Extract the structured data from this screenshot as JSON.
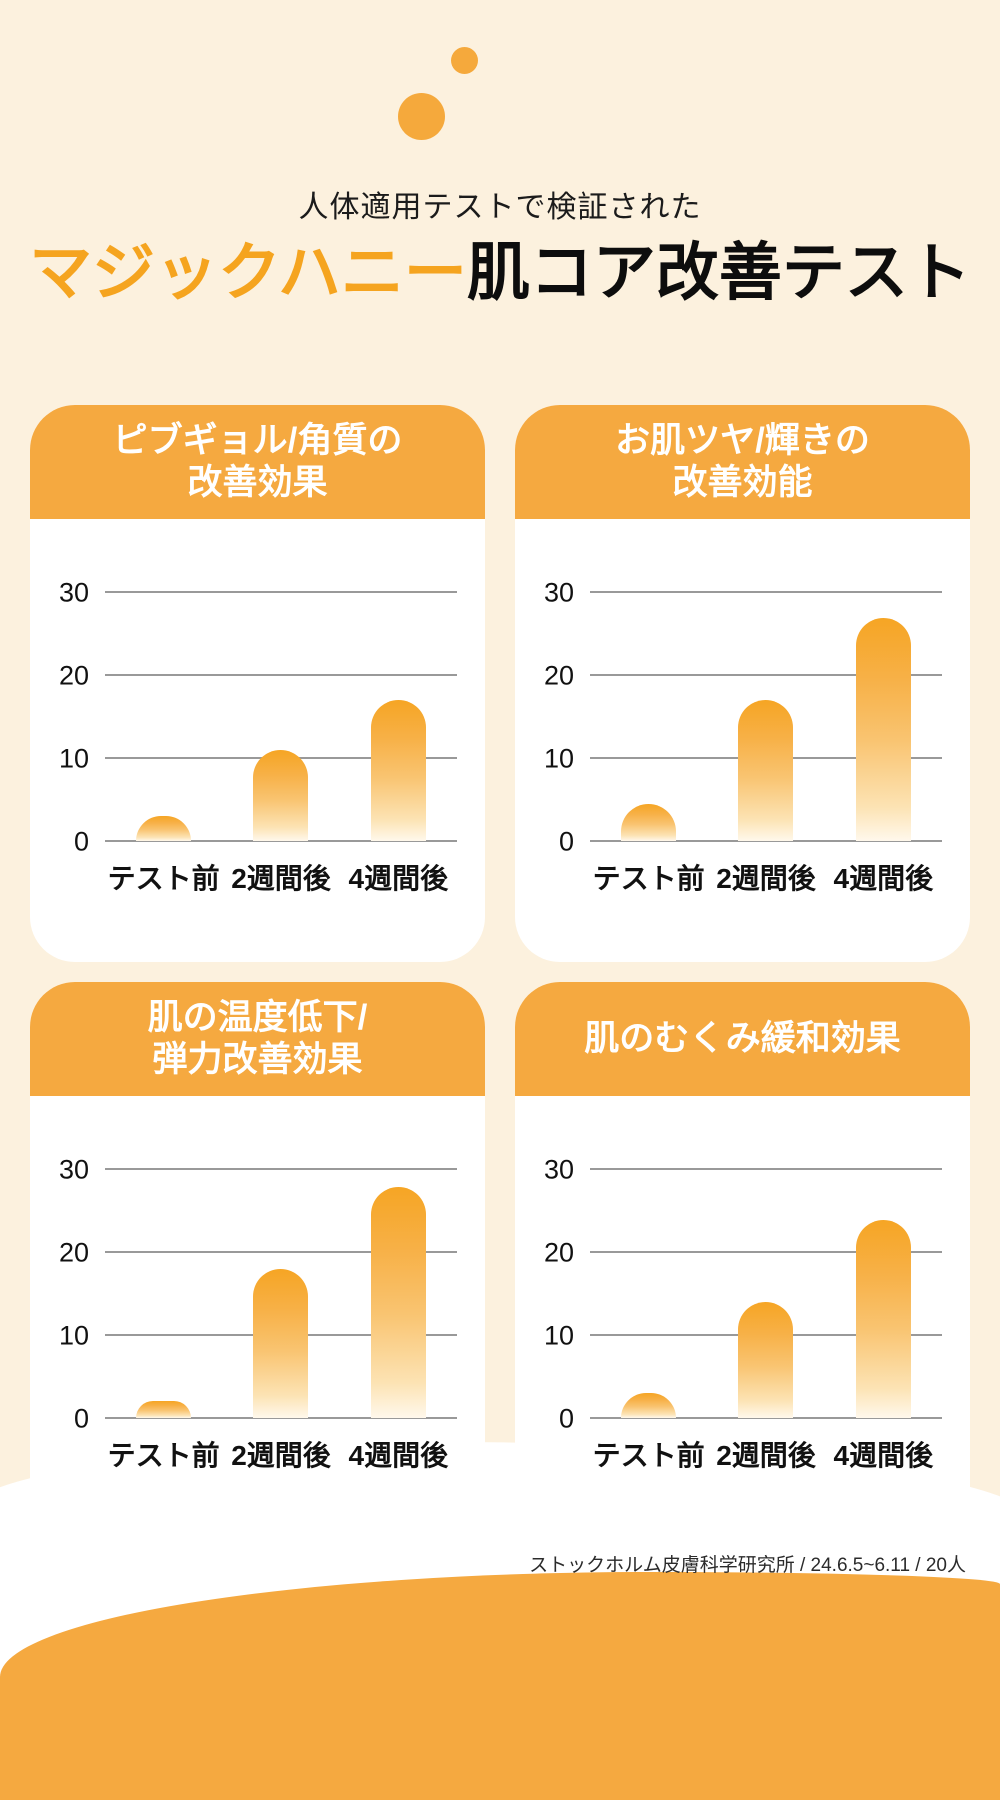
{
  "page": {
    "background": "#FCF1DE",
    "accent_orange": "#F5A940",
    "title_orange": "#F5A41F",
    "gridline_color": "#999999",
    "bar_gradient_top": "#F6A524",
    "bar_gradient_bottom": "#FFF8EC"
  },
  "header": {
    "subtitle": "人体適用テストで検証された",
    "title_highlight": "マジックハニー",
    "title_rest": "肌コア改善テスト"
  },
  "footer": {
    "source_note": "ストックホルム皮膚科学研究所 / 24.6.5~6.11 / 20人"
  },
  "chart_data": [
    {
      "type": "bar",
      "title": "ピブギョル/角質の改善効果",
      "title_lines": [
        "ピブギョル/角質の",
        "改善効果"
      ],
      "categories": [
        "テスト前",
        "2週間後",
        "4週間後"
      ],
      "values": [
        3,
        11,
        17
      ],
      "ylim": [
        0,
        30
      ],
      "yticks": [
        0,
        10,
        20,
        30
      ],
      "xlabel": "",
      "ylabel": "",
      "grid": true,
      "legend": false
    },
    {
      "type": "bar",
      "title": "お肌ツヤ/輝きの改善効能",
      "title_lines": [
        "お肌ツヤ/輝きの",
        "改善効能"
      ],
      "categories": [
        "テスト前",
        "2週間後",
        "4週間後"
      ],
      "values": [
        4.5,
        17,
        27
      ],
      "ylim": [
        0,
        30
      ],
      "yticks": [
        0,
        10,
        20,
        30
      ],
      "xlabel": "",
      "ylabel": "",
      "grid": true,
      "legend": false
    },
    {
      "type": "bar",
      "title": "肌の温度低下/弾力改善効果",
      "title_lines": [
        "肌の温度低下/",
        "弾力改善効果"
      ],
      "categories": [
        "テスト前",
        "2週間後",
        "4週間後"
      ],
      "values": [
        2,
        18,
        28
      ],
      "ylim": [
        0,
        30
      ],
      "yticks": [
        0,
        10,
        20,
        30
      ],
      "xlabel": "",
      "ylabel": "",
      "grid": true,
      "legend": false
    },
    {
      "type": "bar",
      "title": "肌のむくみ緩和効果",
      "title_lines": [
        "肌のむくみ緩和効果"
      ],
      "categories": [
        "テスト前",
        "2週間後",
        "4週間後"
      ],
      "values": [
        3,
        14,
        24
      ],
      "ylim": [
        0,
        30
      ],
      "yticks": [
        0,
        10,
        20,
        30
      ],
      "xlabel": "",
      "ylabel": "",
      "grid": true,
      "legend": false
    }
  ]
}
